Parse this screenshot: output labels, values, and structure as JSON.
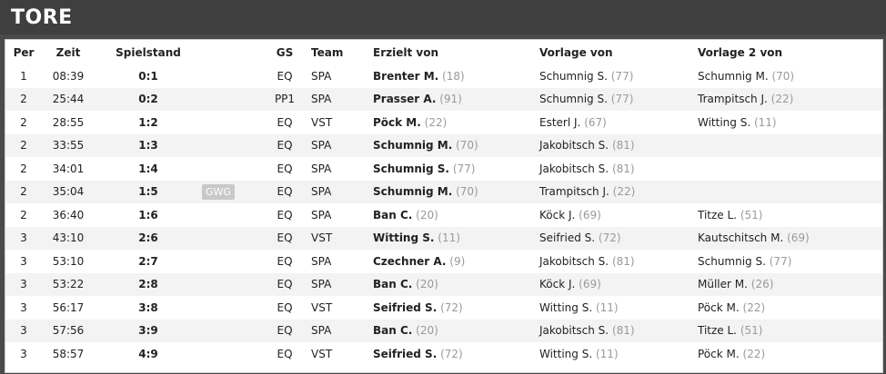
{
  "header": {
    "title": "TORE"
  },
  "columns": {
    "per": "Per",
    "zeit": "Zeit",
    "spielstand": "Spielstand",
    "gs": "GS",
    "team": "Team",
    "erzielt": "Erzielt von",
    "vorlage": "Vorlage von",
    "vorlage2": "Vorlage 2 von"
  },
  "rows": [
    {
      "per": "1",
      "zeit": "08:39",
      "score": "0:1",
      "badge": "",
      "gs": "EQ",
      "team": "SPA",
      "scorer": "Brenter M.",
      "scorer_num": "(18)",
      "assist1": "Schumnig S.",
      "assist1_num": "(77)",
      "assist2": "Schumnig M.",
      "assist2_num": "(70)"
    },
    {
      "per": "2",
      "zeit": "25:44",
      "score": "0:2",
      "badge": "",
      "gs": "PP1",
      "team": "SPA",
      "scorer": "Prasser A.",
      "scorer_num": "(91)",
      "assist1": "Schumnig S.",
      "assist1_num": "(77)",
      "assist2": "Trampitsch J.",
      "assist2_num": "(22)"
    },
    {
      "per": "2",
      "zeit": "28:55",
      "score": "1:2",
      "badge": "",
      "gs": "EQ",
      "team": "VST",
      "scorer": "Pöck M.",
      "scorer_num": "(22)",
      "assist1": "Esterl J.",
      "assist1_num": "(67)",
      "assist2": "Witting S.",
      "assist2_num": "(11)"
    },
    {
      "per": "2",
      "zeit": "33:55",
      "score": "1:3",
      "badge": "",
      "gs": "EQ",
      "team": "SPA",
      "scorer": "Schumnig M.",
      "scorer_num": "(70)",
      "assist1": "Jakobitsch S.",
      "assist1_num": "(81)",
      "assist2": "",
      "assist2_num": ""
    },
    {
      "per": "2",
      "zeit": "34:01",
      "score": "1:4",
      "badge": "",
      "gs": "EQ",
      "team": "SPA",
      "scorer": "Schumnig S.",
      "scorer_num": "(77)",
      "assist1": "Jakobitsch S.",
      "assist1_num": "(81)",
      "assist2": "",
      "assist2_num": ""
    },
    {
      "per": "2",
      "zeit": "35:04",
      "score": "1:5",
      "badge": "GWG",
      "gs": "EQ",
      "team": "SPA",
      "scorer": "Schumnig M.",
      "scorer_num": "(70)",
      "assist1": "Trampitsch J.",
      "assist1_num": "(22)",
      "assist2": "",
      "assist2_num": ""
    },
    {
      "per": "2",
      "zeit": "36:40",
      "score": "1:6",
      "badge": "",
      "gs": "EQ",
      "team": "SPA",
      "scorer": "Ban C.",
      "scorer_num": "(20)",
      "assist1": "Köck J.",
      "assist1_num": "(69)",
      "assist2": "Titze L.",
      "assist2_num": "(51)"
    },
    {
      "per": "3",
      "zeit": "43:10",
      "score": "2:6",
      "badge": "",
      "gs": "EQ",
      "team": "VST",
      "scorer": "Witting S.",
      "scorer_num": "(11)",
      "assist1": "Seifried S.",
      "assist1_num": "(72)",
      "assist2": "Kautschitsch M.",
      "assist2_num": "(69)"
    },
    {
      "per": "3",
      "zeit": "53:10",
      "score": "2:7",
      "badge": "",
      "gs": "EQ",
      "team": "SPA",
      "scorer": "Czechner A.",
      "scorer_num": "(9)",
      "assist1": "Jakobitsch S.",
      "assist1_num": "(81)",
      "assist2": "Schumnig S.",
      "assist2_num": "(77)"
    },
    {
      "per": "3",
      "zeit": "53:22",
      "score": "2:8",
      "badge": "",
      "gs": "EQ",
      "team": "SPA",
      "scorer": "Ban C.",
      "scorer_num": "(20)",
      "assist1": "Köck J.",
      "assist1_num": "(69)",
      "assist2": "Müller M.",
      "assist2_num": "(26)"
    },
    {
      "per": "3",
      "zeit": "56:17",
      "score": "3:8",
      "badge": "",
      "gs": "EQ",
      "team": "VST",
      "scorer": "Seifried S.",
      "scorer_num": "(72)",
      "assist1": "Witting S.",
      "assist1_num": "(11)",
      "assist2": "Pöck M.",
      "assist2_num": "(22)"
    },
    {
      "per": "3",
      "zeit": "57:56",
      "score": "3:9",
      "badge": "",
      "gs": "EQ",
      "team": "SPA",
      "scorer": "Ban C.",
      "scorer_num": "(20)",
      "assist1": "Jakobitsch S.",
      "assist1_num": "(81)",
      "assist2": "Titze L.",
      "assist2_num": "(51)"
    },
    {
      "per": "3",
      "zeit": "58:57",
      "score": "4:9",
      "badge": "",
      "gs": "EQ",
      "team": "VST",
      "scorer": "Seifried S.",
      "scorer_num": "(72)",
      "assist1": "Witting S.",
      "assist1_num": "(11)",
      "assist2": "Pöck M.",
      "assist2_num": "(22)"
    }
  ]
}
